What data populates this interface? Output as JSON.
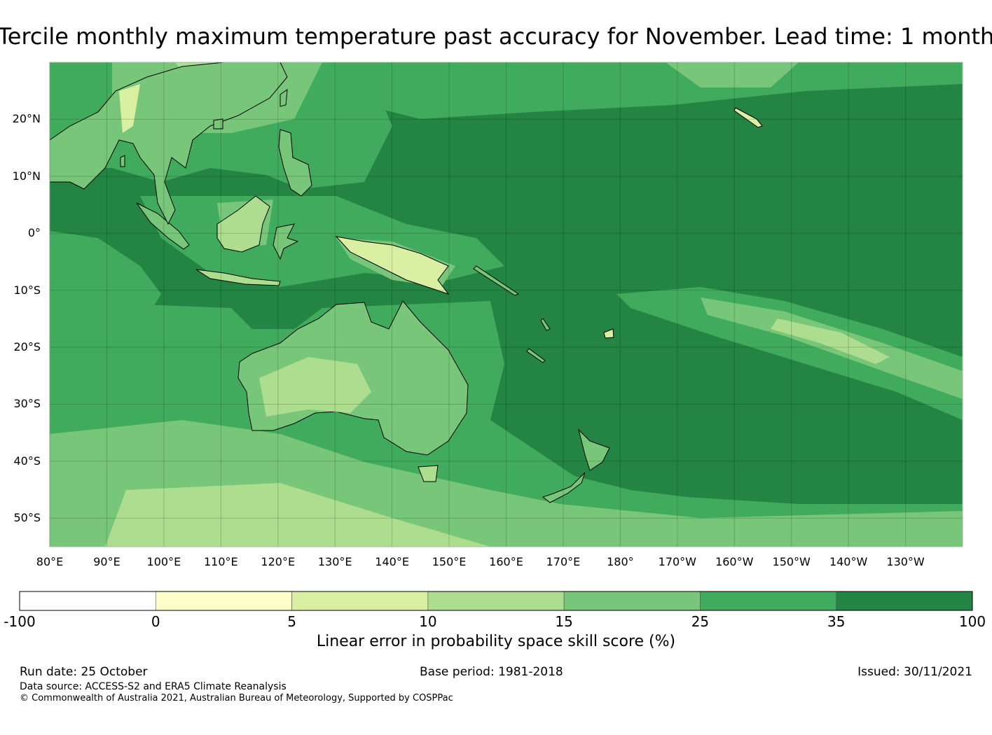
{
  "title": "Tercile monthly maximum temperature past accuracy for November. Lead time: 1 month",
  "map": {
    "lat_labels": [
      "20°N",
      "10°N",
      "0°",
      "10°S",
      "20°S",
      "30°S",
      "40°S",
      "50°S"
    ],
    "lat_values": [
      20,
      10,
      0,
      -10,
      -20,
      -30,
      -40,
      -50
    ],
    "lon_labels": [
      "80°E",
      "90°E",
      "100°E",
      "110°E",
      "120°E",
      "130°E",
      "140°E",
      "150°E",
      "160°E",
      "170°E",
      "180°",
      "170°W",
      "160°W",
      "150°W",
      "140°W",
      "130°W"
    ],
    "lon_values": [
      80,
      90,
      100,
      110,
      120,
      130,
      140,
      150,
      160,
      170,
      180,
      190,
      200,
      210,
      220,
      230
    ],
    "lon_range": [
      80,
      240
    ],
    "lat_range": [
      -55,
      30
    ],
    "ocean_color": "#238443",
    "land_color": "#78c679"
  },
  "colorbar": {
    "label": "Linear error in probability space skill score (%)",
    "ticks": [
      "-100",
      "0",
      "5",
      "10",
      "15",
      "25",
      "35",
      "100"
    ],
    "colors": [
      "#ffffff",
      "#ffffcc",
      "#d9f0a3",
      "#addd8e",
      "#78c679",
      "#41ab5d",
      "#238443"
    ]
  },
  "footer": {
    "run_date": "Run date: 25 October",
    "base_period": "Base period: 1981-2018",
    "issued": "Issued: 30/11/2021",
    "data_source": "Data source: ACCESS-S2 and ERA5 Climate Reanalysis",
    "copyright": "© Commonwealth of Australia 2021, Australian Bureau of Meteorology, Supported by COSPPac"
  }
}
